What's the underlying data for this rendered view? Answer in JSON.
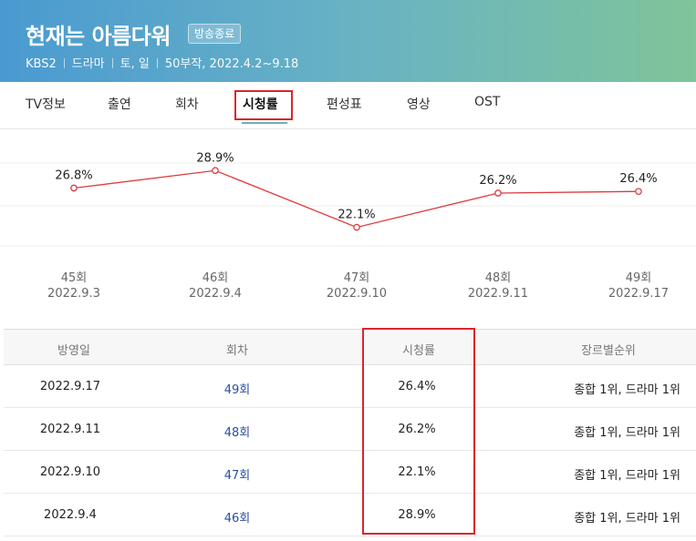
{
  "header": {
    "title": "현재는 아름다워",
    "badge": "방송종료",
    "meta": [
      "KBS2",
      "드라마",
      "토, 일",
      "50부작, 2022.4.2~9.18"
    ]
  },
  "tabs": [
    {
      "label": "TV정보"
    },
    {
      "label": "출연"
    },
    {
      "label": "회차"
    },
    {
      "label": "시청률",
      "active": true
    },
    {
      "label": "편성표"
    },
    {
      "label": "영상"
    },
    {
      "label": "OST"
    }
  ],
  "chart_data": {
    "type": "line",
    "categories": [
      {
        "episode": "45회",
        "date": "2022.9.3"
      },
      {
        "episode": "46회",
        "date": "2022.9.4"
      },
      {
        "episode": "47회",
        "date": "2022.9.10"
      },
      {
        "episode": "48회",
        "date": "2022.9.11"
      },
      {
        "episode": "49회",
        "date": "2022.9.17"
      }
    ],
    "values": [
      26.8,
      28.9,
      22.1,
      26.2,
      26.4
    ],
    "value_labels": [
      "26.8%",
      "28.9%",
      "22.1%",
      "26.2%",
      "26.4%"
    ],
    "ylim": [
      19,
      31
    ],
    "line_color": "#e03a3e",
    "grid": true
  },
  "table": {
    "headers": [
      "방영일",
      "회차",
      "시청률",
      "장르별순위"
    ],
    "rows": [
      {
        "date": "2022.9.17",
        "episode": "49회",
        "rating": "26.4%",
        "rank": "종합 1위, 드라마 1위"
      },
      {
        "date": "2022.9.11",
        "episode": "48회",
        "rating": "26.2%",
        "rank": "종합 1위, 드라마 1위"
      },
      {
        "date": "2022.9.10",
        "episode": "47회",
        "rating": "22.1%",
        "rank": "종합 1위, 드라마 1위"
      },
      {
        "date": "2022.9.4",
        "episode": "46회",
        "rating": "28.9%",
        "rank": "종합 1위, 드라마 1위"
      }
    ]
  },
  "colors": {
    "highlight": "#d9262a",
    "link": "#2b4ea3",
    "header_gradient": [
      "#4a9ad1",
      "#7fc49a"
    ]
  }
}
